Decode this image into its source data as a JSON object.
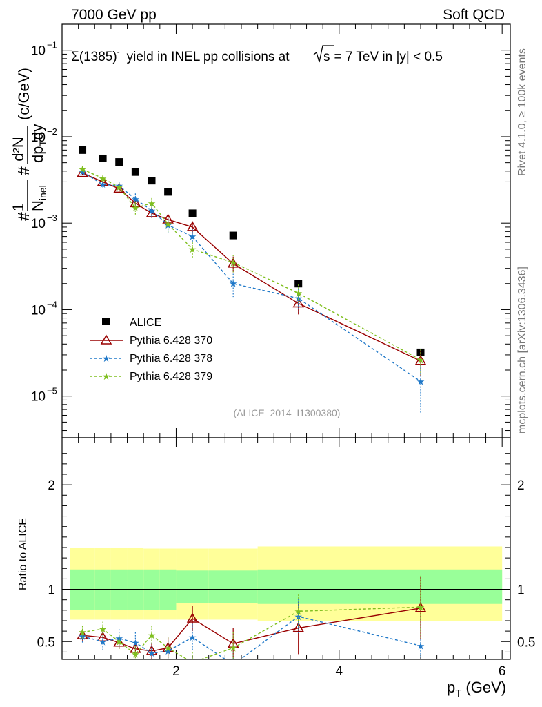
{
  "header": {
    "left": "7000 GeV pp",
    "right": "Soft QCD"
  },
  "main_title": {
    "particle": "Σ(1385)",
    "charge": "-",
    "text1": "yield in INEL pp collisions at",
    "sqrt": "s",
    "text2": "= 7 TeV in |y| < 0.5"
  },
  "side_labels": {
    "rivet": "Rivet 4.1.0, ≥ 100k events",
    "mcplots": "mcplots.cern.ch [arXiv:1306.3436]"
  },
  "watermark": "(ALICE_2014_I1300380)",
  "axes": {
    "ylabel_main_parts": [
      "#",
      "1",
      "N",
      "inel",
      "#",
      "d²N",
      "dp",
      "T",
      "dy",
      "(c/GeV)"
    ],
    "ylabel_ratio": "Ratio to ALICE",
    "xlabel": "p",
    "xlabel_sub": "T",
    "xlabel_unit": "(GeV)",
    "main_ytick_labels": [
      {
        "base": "10",
        "exp": "−1",
        "value": 0.1
      },
      {
        "base": "10",
        "exp": "−2",
        "value": 0.01
      },
      {
        "base": "10",
        "exp": "−3",
        "value": 0.001
      },
      {
        "base": "10",
        "exp": "−4",
        "value": 0.0001
      },
      {
        "base": "10",
        "exp": "−5",
        "value": 1e-05
      }
    ],
    "ratio_ytick_labels": [
      {
        "label": "2",
        "value": 2
      },
      {
        "label": "1",
        "value": 1
      },
      {
        "label": "0.5",
        "value": 0.5
      }
    ],
    "xtick_labels": [
      {
        "label": "2",
        "value": 2
      },
      {
        "label": "4",
        "value": 4
      },
      {
        "label": "6",
        "value": 6
      }
    ]
  },
  "chart_data": {
    "type": "scatter",
    "title": "Σ(1385)- yield in INEL pp collisions at √s = 7 TeV in |y| < 0.5",
    "xlabel": "pT (GeV)",
    "ylabel": "#1/N_inel # d²N/dpT dy (c/GeV)",
    "yscale": "log",
    "xlim": [
      0.6,
      6.1
    ],
    "ylim": [
      3.3e-06,
      0.2
    ],
    "ratio_ylim": [
      0.33,
      2.45
    ],
    "legend_position": "lower-left",
    "reference": {
      "name": "ALICE",
      "color": "#000000",
      "x": [
        0.85,
        1.1,
        1.3,
        1.5,
        1.7,
        1.9,
        2.2,
        2.7,
        3.5,
        5.0
      ],
      "xlo": [
        0.7,
        1.0,
        1.2,
        1.4,
        1.6,
        1.8,
        2.0,
        2.4,
        3.0,
        4.0
      ],
      "xhi": [
        1.0,
        1.2,
        1.4,
        1.6,
        1.8,
        2.0,
        2.4,
        3.0,
        4.0,
        6.0
      ],
      "y": [
        0.007,
        0.0056,
        0.0051,
        0.0039,
        0.0031,
        0.0023,
        0.0013,
        0.00072,
        0.0002,
        3.2e-05
      ],
      "band_inner": [
        [
          0.8,
          1.19
        ],
        [
          0.8,
          1.19
        ],
        [
          0.8,
          1.19
        ],
        [
          0.8,
          1.19
        ],
        [
          0.8,
          1.19
        ],
        [
          0.8,
          1.19
        ],
        [
          0.87,
          1.18
        ],
        [
          0.87,
          1.18
        ],
        [
          0.86,
          1.19
        ],
        [
          0.86,
          1.19
        ]
      ],
      "band_outer": [
        [
          0.71,
          1.4
        ],
        [
          0.71,
          1.4
        ],
        [
          0.71,
          1.4
        ],
        [
          0.71,
          1.4
        ],
        [
          0.71,
          1.39
        ],
        [
          0.71,
          1.39
        ],
        [
          0.71,
          1.39
        ],
        [
          0.71,
          1.39
        ],
        [
          0.7,
          1.41
        ],
        [
          0.7,
          1.41
        ]
      ]
    },
    "series": [
      {
        "name": "Pythia 6.428 370",
        "color": "#990000",
        "style": "solid",
        "marker": "triangle-open",
        "x": [
          0.85,
          1.1,
          1.3,
          1.5,
          1.7,
          1.9,
          2.2,
          2.7,
          3.5,
          5.0
        ],
        "y": [
          0.0038,
          0.003,
          0.0025,
          0.0017,
          0.0013,
          0.0011,
          0.0009,
          0.00034,
          0.000118,
          2.55e-05
        ],
        "err": [
          0.0002,
          0.00025,
          0.0002,
          0.00015,
          0.00015,
          0.00015,
          0.00015,
          7e-05,
          3e-05,
          8.5e-06
        ],
        "ratio": [
          0.56,
          0.54,
          0.49,
          0.43,
          0.41,
          0.44,
          0.72,
          0.48,
          0.63,
          0.82
        ],
        "ratio_err": [
          0.05,
          0.06,
          0.06,
          0.07,
          0.08,
          0.1,
          0.12,
          0.15,
          0.25,
          0.3
        ]
      },
      {
        "name": "Pythia 6.428 378",
        "color": "#1f78c8",
        "style": "dashed",
        "marker": "star",
        "x": [
          0.85,
          1.1,
          1.3,
          1.5,
          1.7,
          1.9,
          2.2,
          2.7,
          3.5,
          5.0
        ],
        "y": [
          0.0039,
          0.0028,
          0.0027,
          0.0019,
          0.0014,
          0.00095,
          0.0007,
          0.0002,
          0.000135,
          1.48e-05
        ],
        "err": [
          0.0003,
          0.0003,
          0.0003,
          0.0003,
          0.00025,
          0.0002,
          0.00015,
          6e-05,
          4e-05,
          8.5e-06
        ],
        "ratio": [
          0.55,
          0.5,
          0.53,
          0.49,
          0.39,
          0.41,
          0.54,
          0.28,
          0.74,
          0.46
        ],
        "ratio_err": [
          0.06,
          0.09,
          0.09,
          0.1,
          0.1,
          0.1,
          0.13,
          0.15,
          0.17,
          0.3
        ]
      },
      {
        "name": "Pythia 6.428 379",
        "color": "#7fbf1f",
        "style": "dashed",
        "marker": "star",
        "x": [
          0.85,
          1.1,
          1.3,
          1.5,
          1.7,
          1.9,
          2.2,
          2.7,
          3.5,
          5.0
        ],
        "y": [
          0.0042,
          0.0033,
          0.0026,
          0.0015,
          0.0017,
          0.00098,
          0.0005,
          0.00035,
          0.000155,
          2.62e-05
        ],
        "err": [
          0.0003,
          0.0003,
          0.0003,
          0.00025,
          0.00025,
          0.0002,
          0.0001,
          8e-05,
          4e-05,
          8.5e-06
        ],
        "ratio": [
          0.59,
          0.62,
          0.5,
          0.38,
          0.56,
          0.44,
          0.3,
          0.44,
          0.79,
          0.83
        ],
        "ratio_err": [
          0.06,
          0.07,
          0.07,
          0.08,
          0.09,
          0.1,
          0.1,
          0.15,
          0.16,
          0.3
        ]
      }
    ]
  }
}
